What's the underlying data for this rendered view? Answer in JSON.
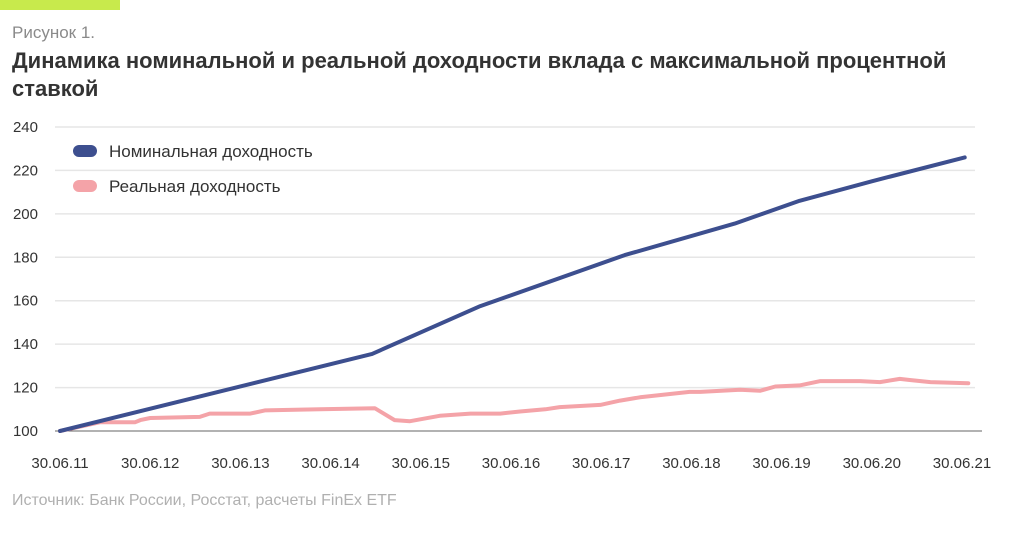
{
  "header": {
    "figure_label": "Рисунок 1.",
    "title": "Динамика номинальной и реальной доходности вклада с максимальной процентной ставкой"
  },
  "source": "Источник: Банк России, Росстат, расчеты FinEx ETF",
  "colors": {
    "accent": "#c8ea4c",
    "nominal": "#3d4f8f",
    "real": "#f4a3a8",
    "grid": "#e6e6e6"
  },
  "chart_data": {
    "type": "line",
    "title": "Динамика номинальной и реальной доходности вклада с максимальной процентной ставкой",
    "xlabel": "",
    "ylabel": "",
    "x_tick_labels": [
      "30.06.11",
      "30.06.12",
      "30.06.13",
      "30.06.14",
      "30.06.15",
      "30.06.16",
      "30.06.17",
      "30.06.18",
      "30.06.19",
      "30.06.20",
      "30.06.21"
    ],
    "x_unit": "years since 30.06.11",
    "xlim": [
      0,
      10
    ],
    "y_ticks": [
      100,
      120,
      140,
      160,
      180,
      200,
      220,
      240
    ],
    "ylim": [
      100,
      240
    ],
    "grid": true,
    "legend_position": "top-left",
    "series": [
      {
        "name": "Номинальная доходность",
        "color": "#3d4f8f",
        "x": [
          0,
          3.46,
          4.66,
          6.26,
          7.48,
          8.2,
          9.0,
          10.03
        ],
        "y": [
          100,
          135.5,
          157.5,
          181,
          195.5,
          206,
          215,
          226
        ]
      },
      {
        "name": "Реальная доходность",
        "color": "#f4a3a8",
        "x": [
          0,
          0.44,
          0.83,
          0.89,
          1.0,
          1.55,
          1.66,
          2.11,
          2.27,
          2.88,
          3.49,
          3.71,
          3.88,
          4.21,
          4.55,
          4.88,
          5.1,
          5.38,
          5.54,
          5.99,
          6.21,
          6.43,
          6.98,
          7.1,
          7.54,
          7.76,
          7.93,
          8.2,
          8.43,
          8.87,
          9.09,
          9.31,
          9.42,
          9.65,
          10.07
        ],
        "y": [
          100,
          104,
          104,
          105,
          106,
          106.5,
          108,
          108,
          109.5,
          110,
          110.5,
          105,
          104.5,
          107,
          108,
          108,
          109,
          110,
          111,
          112,
          114,
          115.5,
          118,
          118,
          119,
          118.5,
          120.5,
          121,
          123,
          123,
          122.5,
          124,
          123.5,
          122.5,
          122
        ]
      }
    ]
  }
}
